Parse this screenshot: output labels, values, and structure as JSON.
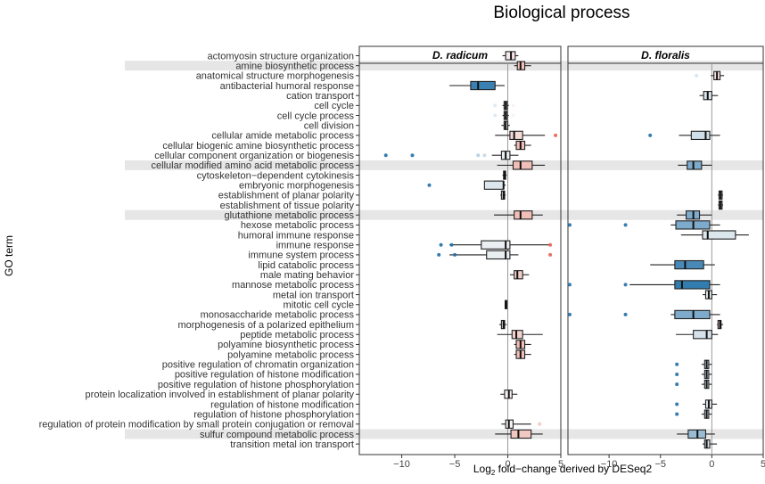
{
  "chart_data": {
    "type": "boxplot",
    "title": "Biological process",
    "ylabel": "GO term",
    "xlabel_prefix": "Log",
    "xlabel_sub": "2",
    "xlabel_suffix": " fold−change derived by DESeq2",
    "xlim": [
      -14,
      5
    ],
    "xticks": [
      {
        "v": -10,
        "label": "−10"
      },
      {
        "v": -5,
        "label": "−5"
      },
      {
        "v": 0,
        "label": "0"
      },
      {
        "v": 5,
        "label": "5"
      }
    ],
    "facets": [
      "D. radicum",
      "D. floralis"
    ],
    "highlighted_terms": [
      "amine biosynthetic process",
      "cellular modified amino acid metabolic process",
      "glutathione metabolic process",
      "sulfur compound metabolic process"
    ],
    "color_scale": {
      "low": "#1f6fa8",
      "mid": "#f7f7f7",
      "high": "#e8614e"
    },
    "terms": [
      "actomyosin structure organization",
      "amine biosynthetic process",
      "anatomical structure morphogenesis",
      "antibacterial humoral response",
      "cation transport",
      "cell cycle",
      "cell cycle process",
      "cell division",
      "cellular amide metabolic process",
      "cellular biogenic amine biosynthetic process",
      "cellular component organization or biogenesis",
      "cellular modified amino acid metabolic process",
      "cytoskeleton−dependent cytokinesis",
      "embryonic morphogenesis",
      "establishment of planar polarity",
      "establishment of tissue polarity",
      "glutathione metabolic process",
      "hexose metabolic process",
      "humoral immune response",
      "immune response",
      "immune system process",
      "lipid catabolic process",
      "male mating behavior",
      "mannose metabolic process",
      "metal ion transport",
      "mitotic cell cycle",
      "monosaccharide metabolic process",
      "morphogenesis of a polarized epithelium",
      "peptide metabolic process",
      "polyamine biosynthetic process",
      "polyamine metabolic process",
      "positive regulation of chromatin organization",
      "positive regulation of histone modification",
      "positive regulation of histone phosphorylation",
      "protein localization involved in establishment of planar polarity",
      "regulation of histone modification",
      "regulation of histone phosphorylation",
      "regulation of protein modification by small protein conjugation or removal",
      "sulfur compound metabolic process",
      "transition metal ion transport"
    ],
    "series": [
      {
        "name": "D. radicum",
        "boxes": [
          {
            "row": 0,
            "min": -0.5,
            "q1": -0.2,
            "med": 0.3,
            "q3": 0.7,
            "max": 1.0,
            "outliers": []
          },
          {
            "row": 1,
            "min": 0.6,
            "q1": 0.9,
            "med": 1.2,
            "q3": 1.6,
            "max": 2.2,
            "outliers": []
          },
          {
            "row": 3,
            "min": -5.5,
            "q1": -3.5,
            "med": -2.8,
            "q3": -1.2,
            "max": -0.3,
            "outliers": []
          },
          {
            "row": 5,
            "min": -0.5,
            "q1": -0.35,
            "med": -0.2,
            "q3": -0.05,
            "max": 0.1,
            "outliers": [
              -1.2,
              0.5
            ]
          },
          {
            "row": 6,
            "min": -0.5,
            "q1": -0.35,
            "med": -0.2,
            "q3": -0.05,
            "max": 0.1,
            "outliers": [
              -1.2,
              0.5
            ]
          },
          {
            "row": 7,
            "min": -0.6,
            "q1": -0.35,
            "med": -0.2,
            "q3": 0.0,
            "max": 0.2,
            "outliers": []
          },
          {
            "row": 8,
            "min": -1.2,
            "q1": 0.2,
            "med": 0.6,
            "q3": 1.4,
            "max": 3.5,
            "outliers": [
              4.5
            ]
          },
          {
            "row": 9,
            "min": 0.6,
            "q1": 0.8,
            "med": 1.2,
            "q3": 1.6,
            "max": 2.2,
            "outliers": []
          },
          {
            "row": 10,
            "min": -1.5,
            "q1": -0.6,
            "med": -0.2,
            "q3": 0.2,
            "max": 1.0,
            "outliers": [
              -11.5,
              -9.0,
              -2.8,
              -2.2
            ]
          },
          {
            "row": 11,
            "min": -1.0,
            "q1": 0.5,
            "med": 1.2,
            "q3": 2.3,
            "max": 3.5,
            "outliers": []
          },
          {
            "row": 12,
            "min": -0.5,
            "q1": -0.4,
            "med": -0.3,
            "q3": -0.2,
            "max": -0.1,
            "outliers": []
          },
          {
            "row": 13,
            "min": -2.2,
            "q1": -2.2,
            "med": -0.4,
            "q3": -0.4,
            "max": -0.2,
            "outliers": [
              -7.4
            ]
          },
          {
            "row": 14,
            "min": -0.7,
            "q1": -0.6,
            "med": -0.4,
            "q3": -0.3,
            "max": -0.2,
            "outliers": []
          },
          {
            "row": 16,
            "min": -1.3,
            "q1": 0.6,
            "med": 1.2,
            "q3": 2.3,
            "max": 3.3,
            "outliers": []
          },
          {
            "row": 19,
            "min": -5.5,
            "q1": -2.5,
            "med": -0.2,
            "q3": 0.2,
            "max": 4.0,
            "outliers": [
              -6.3,
              -5.3,
              4.0
            ]
          },
          {
            "row": 20,
            "min": -5.5,
            "q1": -2.0,
            "med": -0.2,
            "q3": 0.2,
            "max": 1.0,
            "outliers": [
              -6.5,
              -5.0,
              4.0
            ]
          },
          {
            "row": 22,
            "min": 0.2,
            "q1": 0.6,
            "med": 0.9,
            "q3": 1.4,
            "max": 2.0,
            "outliers": []
          },
          {
            "row": 25,
            "min": -0.3,
            "q1": -0.25,
            "med": -0.2,
            "q3": -0.15,
            "max": -0.1,
            "outliers": []
          },
          {
            "row": 27,
            "min": -0.8,
            "q1": -0.6,
            "med": -0.4,
            "q3": -0.3,
            "max": -0.1,
            "outliers": []
          },
          {
            "row": 28,
            "min": -1.0,
            "q1": 0.4,
            "med": 0.8,
            "q3": 1.4,
            "max": 3.3,
            "outliers": []
          },
          {
            "row": 29,
            "min": 0.6,
            "q1": 0.8,
            "med": 1.2,
            "q3": 1.6,
            "max": 2.2,
            "outliers": []
          },
          {
            "row": 30,
            "min": 0.6,
            "q1": 0.8,
            "med": 1.2,
            "q3": 1.6,
            "max": 2.2,
            "outliers": []
          },
          {
            "row": 34,
            "min": -0.7,
            "q1": -0.3,
            "med": 0.1,
            "q3": 0.4,
            "max": 0.9,
            "outliers": []
          },
          {
            "row": 37,
            "min": -0.6,
            "q1": -0.2,
            "med": 0.1,
            "q3": 0.5,
            "max": 2.2,
            "outliers": [
              3.0
            ]
          },
          {
            "row": 38,
            "min": -1.2,
            "q1": 0.3,
            "med": 1.0,
            "q3": 2.2,
            "max": 3.3,
            "outliers": []
          }
        ]
      },
      {
        "name": "D. floralis",
        "boxes": [
          {
            "row": 2,
            "min": -0.1,
            "q1": 0.2,
            "med": 0.5,
            "q3": 0.8,
            "max": 1.2,
            "outliers": [
              -1.5
            ]
          },
          {
            "row": 4,
            "min": -1.2,
            "q1": -0.8,
            "med": -0.4,
            "q3": 0.0,
            "max": 0.6,
            "outliers": []
          },
          {
            "row": 8,
            "min": -3.2,
            "q1": -2.0,
            "med": -0.6,
            "q3": -0.2,
            "max": 0.8,
            "outliers": [
              -6.0
            ]
          },
          {
            "row": 11,
            "min": -3.3,
            "q1": -2.4,
            "med": -1.8,
            "q3": -1.0,
            "max": 0.0,
            "outliers": []
          },
          {
            "row": 14,
            "min": 0.6,
            "q1": 0.7,
            "med": 0.85,
            "q3": 1.0,
            "max": 1.1,
            "outliers": []
          },
          {
            "row": 15,
            "min": 0.6,
            "q1": 0.7,
            "med": 0.85,
            "q3": 1.0,
            "max": 1.1,
            "outliers": []
          },
          {
            "row": 16,
            "min": -3.4,
            "q1": -2.5,
            "med": -1.8,
            "q3": -1.2,
            "max": 0.0,
            "outliers": []
          },
          {
            "row": 17,
            "min": -4.0,
            "q1": -3.5,
            "med": -1.8,
            "q3": -0.2,
            "max": 0.8,
            "outliers": [
              -15.0,
              -8.4
            ]
          },
          {
            "row": 18,
            "min": -3.0,
            "q1": -0.9,
            "med": -0.4,
            "q3": 2.3,
            "max": 3.6,
            "outliers": []
          },
          {
            "row": 21,
            "min": -6.0,
            "q1": -3.6,
            "med": -2.6,
            "q3": -0.8,
            "max": 0.3,
            "outliers": []
          },
          {
            "row": 23,
            "min": -8.0,
            "q1": -3.6,
            "med": -2.9,
            "q3": -0.2,
            "max": 0.8,
            "outliers": [
              -15.0,
              -8.4
            ]
          },
          {
            "row": 24,
            "min": -0.9,
            "q1": -0.6,
            "med": -0.3,
            "q3": 0.0,
            "max": 0.5,
            "outliers": []
          },
          {
            "row": 26,
            "min": -4.0,
            "q1": -3.6,
            "med": -1.8,
            "q3": -0.2,
            "max": 0.8,
            "outliers": [
              -15.0,
              -8.4
            ]
          },
          {
            "row": 27,
            "min": 0.5,
            "q1": 0.6,
            "med": 0.8,
            "q3": 0.9,
            "max": 1.1,
            "outliers": []
          },
          {
            "row": 28,
            "min": -3.5,
            "q1": -1.8,
            "med": -0.5,
            "q3": 0.0,
            "max": 0.6,
            "outliers": []
          },
          {
            "row": 31,
            "min": -1.0,
            "q1": -0.7,
            "med": -0.5,
            "q3": -0.3,
            "max": 0.0,
            "outliers": [
              -3.4
            ]
          },
          {
            "row": 32,
            "min": -1.0,
            "q1": -0.7,
            "med": -0.5,
            "q3": -0.3,
            "max": 0.0,
            "outliers": [
              -3.4
            ]
          },
          {
            "row": 33,
            "min": -1.0,
            "q1": -0.7,
            "med": -0.5,
            "q3": -0.3,
            "max": 0.0,
            "outliers": [
              -3.4
            ]
          },
          {
            "row": 35,
            "min": -0.9,
            "q1": -0.6,
            "med": -0.3,
            "q3": 0.0,
            "max": 0.5,
            "outliers": [
              -3.4
            ]
          },
          {
            "row": 36,
            "min": -1.0,
            "q1": -0.7,
            "med": -0.5,
            "q3": -0.3,
            "max": 0.0,
            "outliers": [
              -3.4
            ]
          },
          {
            "row": 38,
            "min": -3.4,
            "q1": -2.3,
            "med": -1.4,
            "q3": -0.6,
            "max": 0.3,
            "outliers": []
          },
          {
            "row": 39,
            "min": -0.9,
            "q1": -0.7,
            "med": -0.5,
            "q3": -0.2,
            "max": 0.5,
            "outliers": []
          }
        ]
      }
    ]
  }
}
